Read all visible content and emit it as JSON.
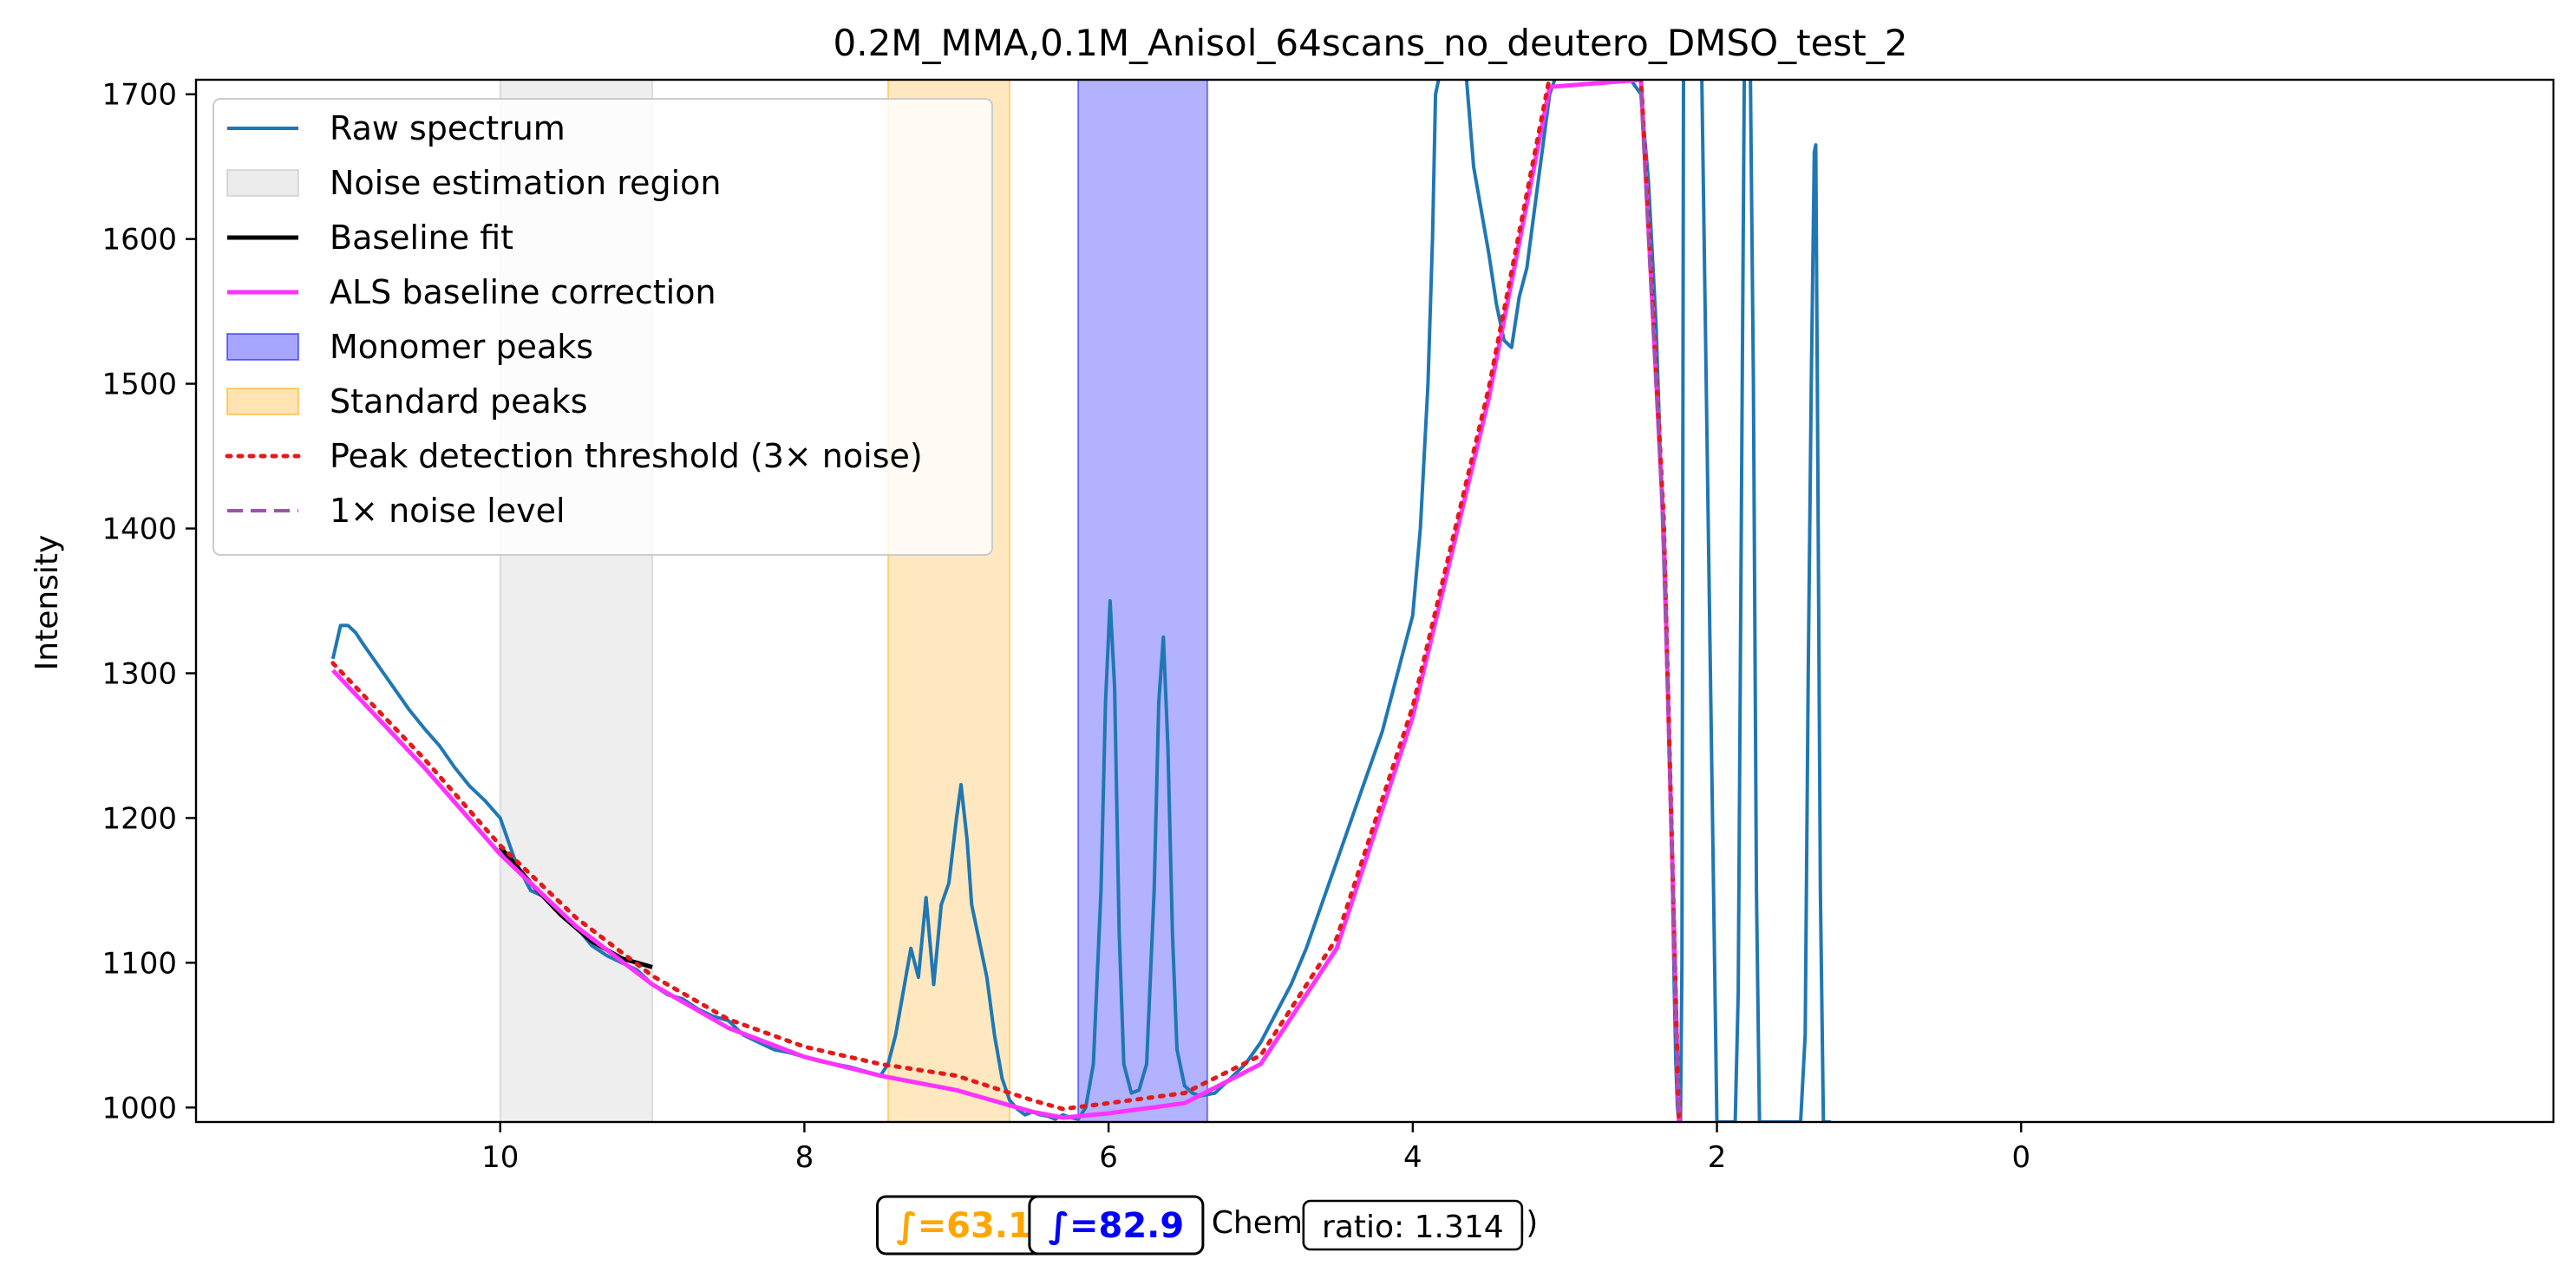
{
  "chart_data": {
    "type": "line",
    "title": "0.2M_MMA,0.1M_Anisol_64scans_no_deutero_DMSO_test_2",
    "xlabel": "Chemical shift (ppm)",
    "ylabel": "Intensity",
    "xlim": [
      12.0,
      -3.5
    ],
    "ylim": [
      990,
      1710
    ],
    "x_axis_inverted": true,
    "grid": false,
    "legend_position": "top-left",
    "x_ticks": [
      10,
      8,
      6,
      4,
      2,
      0
    ],
    "y_ticks": [
      1000,
      1100,
      1200,
      1300,
      1400,
      1500,
      1600,
      1700
    ],
    "x_tick_labels": [
      "10",
      "8",
      "6",
      "4",
      "2",
      "0"
    ],
    "y_tick_labels": [
      "1000",
      "1100",
      "1200",
      "1300",
      "1400",
      "1500",
      "1600",
      "1700"
    ],
    "regions": [
      {
        "name": "Noise estimation region",
        "x_range": [
          10.0,
          9.0
        ],
        "color": "#bdbdbd",
        "alpha": 0.25
      },
      {
        "name": "Standard peaks",
        "x_range": [
          7.45,
          6.65
        ],
        "color": "#ffa500",
        "alpha": 0.25
      },
      {
        "name": "Monomer peaks",
        "x_range": [
          6.2,
          5.35
        ],
        "color": "#0000ff",
        "alpha": 0.3
      }
    ],
    "series": [
      {
        "name": "Raw spectrum",
        "color": "#1f77b4",
        "style": "solid",
        "x": [
          11.1,
          11.05,
          11.0,
          10.95,
          10.9,
          10.8,
          10.7,
          10.6,
          10.5,
          10.4,
          10.3,
          10.2,
          10.1,
          10.0,
          9.9,
          9.8,
          9.7,
          9.6,
          9.5,
          9.4,
          9.3,
          9.2,
          9.1,
          9.0,
          8.9,
          8.8,
          8.7,
          8.6,
          8.5,
          8.4,
          8.3,
          8.2,
          8.1,
          8.0,
          7.9,
          7.8,
          7.7,
          7.6,
          7.5,
          7.45,
          7.4,
          7.35,
          7.3,
          7.25,
          7.2,
          7.15,
          7.1,
          7.05,
          7.0,
          6.97,
          6.93,
          6.9,
          6.85,
          6.8,
          6.75,
          6.7,
          6.65,
          6.6,
          6.55,
          6.5,
          6.45,
          6.4,
          6.35,
          6.3,
          6.25,
          6.2,
          6.15,
          6.1,
          6.05,
          6.02,
          5.99,
          5.96,
          5.93,
          5.9,
          5.85,
          5.8,
          5.75,
          5.7,
          5.67,
          5.64,
          5.61,
          5.58,
          5.55,
          5.5,
          5.45,
          5.4,
          5.3,
          5.2,
          5.1,
          5.0,
          4.9,
          4.8,
          4.7,
          4.6,
          4.5,
          4.4,
          4.3,
          4.2,
          4.1,
          4.0,
          3.95,
          3.9,
          3.87,
          3.85,
          3.82,
          3.75,
          3.7,
          3.65,
          3.6,
          3.5,
          3.45,
          3.4,
          3.35,
          3.3,
          3.25,
          3.2,
          3.15,
          3.1,
          3.05,
          3.0,
          2.6,
          2.5,
          2.45,
          2.4,
          2.35,
          2.3,
          2.28,
          2.27,
          2.26,
          2.25,
          2.24,
          2.23,
          2.22,
          2.1,
          2.0,
          1.9,
          1.88,
          1.86,
          1.84,
          1.82,
          1.8,
          1.78,
          1.76,
          1.74,
          1.72,
          1.7,
          1.6,
          1.5,
          1.45,
          1.42,
          1.4,
          1.38,
          1.36,
          1.35,
          1.34,
          1.32,
          1.3,
          1.28,
          1.25
        ],
        "y": [
          1310,
          1333,
          1333,
          1328,
          1320,
          1305,
          1290,
          1275,
          1262,
          1250,
          1235,
          1222,
          1212,
          1200,
          1170,
          1150,
          1145,
          1135,
          1125,
          1112,
          1105,
          1100,
          1095,
          1085,
          1078,
          1075,
          1068,
          1063,
          1060,
          1050,
          1045,
          1040,
          1038,
          1035,
          1032,
          1030,
          1028,
          1025,
          1022,
          1030,
          1050,
          1080,
          1110,
          1090,
          1145,
          1085,
          1140,
          1155,
          1200,
          1223,
          1185,
          1140,
          1115,
          1090,
          1050,
          1020,
          1005,
          999,
          995,
          997,
          995,
          994,
          992,
          995,
          993,
          992,
          1000,
          1030,
          1150,
          1280,
          1350,
          1290,
          1120,
          1030,
          1010,
          1012,
          1030,
          1150,
          1280,
          1325,
          1250,
          1120,
          1040,
          1015,
          1010,
          1008,
          1010,
          1020,
          1030,
          1045,
          1065,
          1085,
          1110,
          1140,
          1170,
          1200,
          1230,
          1260,
          1300,
          1340,
          1400,
          1500,
          1600,
          1700,
          1715,
          1715,
          1715,
          1715,
          1650,
          1590,
          1555,
          1530,
          1525,
          1560,
          1580,
          1620,
          1660,
          1700,
          1715,
          1715,
          1715,
          1700,
          1640,
          1540,
          1380,
          1200,
          1080,
          1030,
          1000,
          990,
          990,
          1100,
          1715,
          1715,
          990,
          990,
          990,
          1080,
          1400,
          1715,
          1715,
          1715,
          1500,
          1150,
          990,
          990,
          990,
          990,
          990,
          1050,
          1300,
          1500,
          1660,
          1665,
          1500,
          1150,
          990,
          990,
          990
        ]
      },
      {
        "name": "Noise estimation region",
        "color": "#d9d9d9",
        "style": "patch"
      },
      {
        "name": "Baseline fit",
        "color": "#000000",
        "style": "solid",
        "x": [
          10.0,
          9.8,
          9.6,
          9.4,
          9.2,
          9.0
        ],
        "y": [
          1180,
          1155,
          1133,
          1115,
          1103,
          1097
        ]
      },
      {
        "name": "ALS baseline correction",
        "color": "#ff33ff",
        "style": "solid",
        "x": [
          11.1,
          10.5,
          10.0,
          9.5,
          9.0,
          8.5,
          8.0,
          7.5,
          7.0,
          6.5,
          6.3,
          6.0,
          5.5,
          5.0,
          4.5,
          4.0,
          3.5,
          3.1,
          2.5,
          2.35,
          2.25
        ],
        "y": [
          1302,
          1235,
          1175,
          1125,
          1085,
          1055,
          1035,
          1022,
          1012,
          997,
          993,
          996,
          1003,
          1030,
          1110,
          1270,
          1490,
          1705,
          1710,
          1400,
          990
        ]
      },
      {
        "name": "Monomer peaks",
        "color": "#0000ff",
        "style": "patch"
      },
      {
        "name": "Standard peaks",
        "color": "#ffa500",
        "style": "patch"
      },
      {
        "name": "Peak detection threshold (3× noise)",
        "color": "#e31a1c",
        "style": "dotted",
        "x": [
          11.1,
          10.5,
          10.0,
          9.5,
          9.0,
          8.5,
          8.0,
          7.5,
          7.0,
          6.5,
          6.3,
          6.0,
          5.5,
          5.0,
          4.5,
          4.0,
          3.5,
          3.1,
          2.5,
          2.35,
          2.25
        ],
        "y": [
          1307,
          1241,
          1181,
          1131,
          1091,
          1061,
          1042,
          1030,
          1022,
          1005,
          999,
          1003,
          1010,
          1036,
          1117,
          1277,
          1497,
          1712,
          1712,
          1406,
          990
        ]
      },
      {
        "name": "1× noise level",
        "color": "#a050b0",
        "style": "dashed",
        "x": [
          2.5,
          2.35,
          2.25
        ],
        "y": [
          1702,
          1398,
          990
        ]
      }
    ],
    "annotations": [
      {
        "text": "∫=63.1",
        "color": "#ffa500",
        "x_data": 6.95
      },
      {
        "text": "∫=82.9",
        "color": "#0000ff",
        "x_data": 5.95
      },
      {
        "text": "ratio: 1.314",
        "color": "#000000",
        "x_data": 4.0
      }
    ]
  }
}
